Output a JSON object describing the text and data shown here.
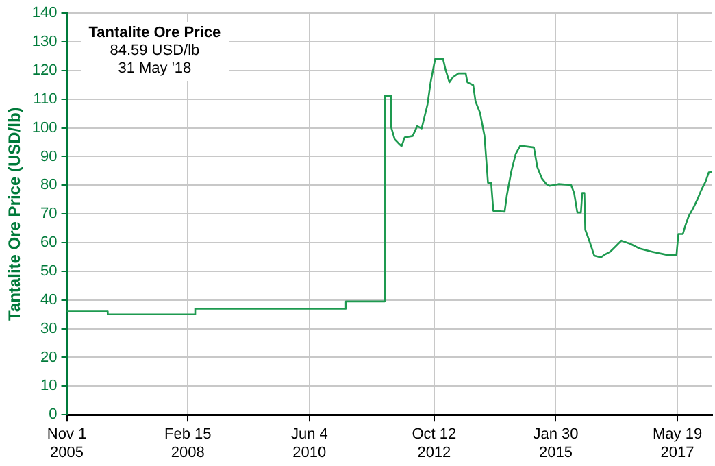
{
  "chart_data": {
    "type": "line",
    "title": "Tantalite Ore Price",
    "annotations": [
      "84.59 USD/lb",
      "31 May '18"
    ],
    "ylabel": "Tantalite Ore Price (USD/lb)",
    "x": [
      "2005-11-01",
      "2006-08-10",
      "2006-08-11",
      "2008-04-05",
      "2008-04-06",
      "2011-02-10",
      "2011-02-11",
      "2011-11-05",
      "2011-11-06",
      "2011-12-19",
      "2011-12-20",
      "2012-01-14",
      "2012-02-14",
      "2012-03-01",
      "2012-03-23",
      "2012-05-17",
      "2012-06-17",
      "2012-07-18",
      "2012-08-27",
      "2012-09-18",
      "2012-10-19",
      "2012-12-13",
      "2012-12-29",
      "2013-01-26",
      "2013-02-20",
      "2013-03-29",
      "2013-05-18",
      "2013-05-30",
      "2013-07-09",
      "2013-07-25",
      "2013-08-25",
      "2013-09-25",
      "2013-10-19",
      "2013-11-10",
      "2013-11-25",
      "2014-02-11",
      "2014-02-27",
      "2014-03-29",
      "2014-04-29",
      "2014-05-30",
      "2014-09-01",
      "2014-09-25",
      "2014-10-26",
      "2014-11-26",
      "2014-12-18",
      "2015-02-18",
      "2015-05-16",
      "2015-06-06",
      "2015-06-28",
      "2015-07-23",
      "2015-08-01",
      "2015-08-16",
      "2015-08-22",
      "2015-09-22",
      "2015-10-23",
      "2015-12-08",
      "2016-01-09",
      "2016-02-09",
      "2016-03-11",
      "2016-04-27",
      "2016-06-28",
      "2016-08-29",
      "2016-11-29",
      "2017-03-03",
      "2017-05-13",
      "2017-05-26",
      "2017-06-26",
      "2017-07-11",
      "2017-08-05",
      "2017-09-05",
      "2017-10-05",
      "2017-10-30",
      "2017-11-30",
      "2017-12-22",
      "2018-01-12"
    ],
    "series": [
      {
        "color": "#1e9a50",
        "values": [
          36,
          36,
          35,
          35,
          37,
          37,
          39.5,
          39.5,
          111.2,
          111.2,
          100.3,
          96,
          94.4,
          93.6,
          96.7,
          97.2,
          100.6,
          99.8,
          108.1,
          115.9,
          124,
          124,
          120.5,
          115.9,
          117.7,
          119,
          119,
          115.9,
          114.9,
          109.2,
          105.3,
          97.2,
          80.9,
          80.9,
          71.1,
          70.8,
          76.7,
          84.8,
          91,
          93.8,
          93.2,
          86.3,
          82.4,
          80.4,
          79.8,
          80.4,
          80.1,
          77.3,
          70.5,
          70.5,
          77.3,
          77.3,
          64.5,
          60.2,
          55.5,
          54.9,
          56,
          56.8,
          58.3,
          60.7,
          59.6,
          58,
          56.8,
          55.8,
          55.8,
          63,
          63,
          65.6,
          69.2,
          72,
          75.1,
          78.2,
          81.3,
          84.5,
          84.6
        ]
      }
    ],
    "xlim": [
      "2005-11-01",
      "2018-01-15"
    ],
    "xticks": [
      {
        "value": "2005-11-01",
        "label": "Nov 1\n2005"
      },
      {
        "value": "2008-02-15",
        "label": "Feb 15\n2008"
      },
      {
        "value": "2010-06-04",
        "label": "Jun 4\n2010"
      },
      {
        "value": "2012-10-12",
        "label": "Oct 12\n2012"
      },
      {
        "value": "2015-01-30",
        "label": "Jan 30\n2015"
      },
      {
        "value": "2017-05-19",
        "label": "May 19\n2017"
      }
    ],
    "ylim": [
      0,
      140
    ],
    "yticks": [
      0,
      10,
      20,
      30,
      40,
      50,
      60,
      70,
      80,
      90,
      100,
      110,
      120,
      130,
      140
    ],
    "grid": true,
    "legend": false,
    "marker": "none",
    "line_style": "solid"
  }
}
